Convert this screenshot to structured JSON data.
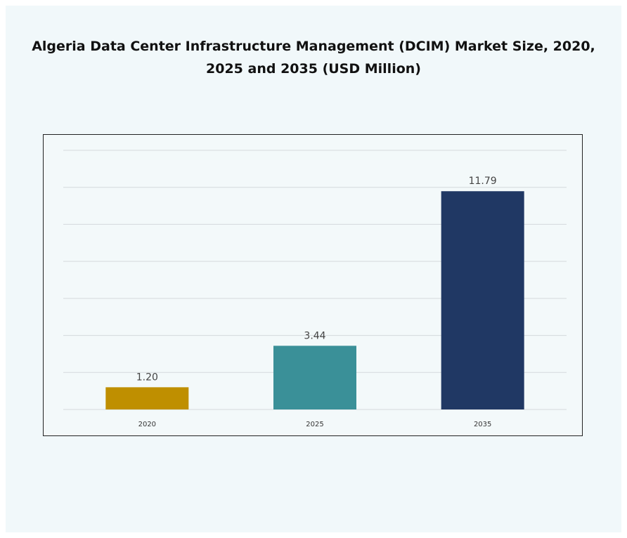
{
  "chart_data": {
    "type": "bar",
    "title": "Algeria Data Center Infrastructure Management (DCIM) Market Size, 2020, 2025 and 2035 (USD Million)",
    "categories": [
      "2020",
      "2025",
      "2035"
    ],
    "values": [
      1.2,
      3.44,
      11.79
    ],
    "data_labels": [
      "1.20",
      "3.44",
      "11.79"
    ],
    "colors": [
      "#bf8f00",
      "#3a9098",
      "#203864"
    ],
    "xlabel": "",
    "ylabel": "",
    "ylim": [
      0,
      14
    ],
    "grid": true,
    "legend": "none"
  }
}
